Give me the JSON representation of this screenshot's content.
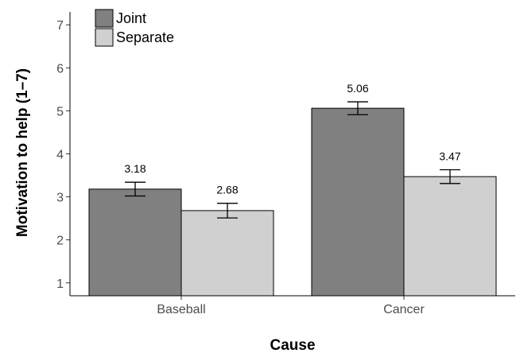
{
  "chart_data": {
    "type": "bar",
    "categories": [
      "Baseball",
      "Cancer"
    ],
    "series": [
      {
        "name": "Joint",
        "color": "#808080",
        "values": [
          3.18,
          5.06
        ],
        "error": [
          0.16,
          0.15
        ],
        "labels": [
          "3.18",
          "5.06"
        ]
      },
      {
        "name": "Separate",
        "color": "#d0d0d0",
        "values": [
          2.68,
          3.47
        ],
        "error": [
          0.17,
          0.16
        ],
        "labels": [
          "2.68",
          "3.47"
        ]
      }
    ],
    "xlabel": "Cause",
    "ylabel": "Motivation to help (1–7)",
    "ylim": [
      0.7,
      7.3
    ],
    "yticks": [
      "1",
      "2",
      "3",
      "4",
      "5",
      "6",
      "7"
    ],
    "legend_position": "top-left",
    "grid": false
  }
}
